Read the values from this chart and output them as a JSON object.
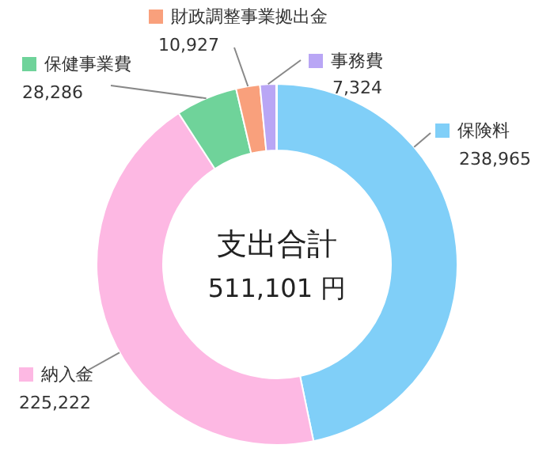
{
  "chart_data": {
    "type": "donut",
    "title": "支出合計",
    "subtitle": "511,101 円",
    "categories": [
      "保険料",
      "納入金",
      "保健事業費",
      "財政調整事業拠出金",
      "事務費",
      null
    ],
    "values": [
      238965,
      225222,
      28286,
      10927,
      7324,
      377
    ],
    "value_labels": [
      "238,965",
      "225,222",
      "28,286",
      "10,927",
      "7,324",
      null
    ],
    "colors": [
      "#80cff8",
      "#fdb8e3",
      "#6fd39a",
      "#f9a07c",
      "#b9a6f5",
      "#c8c8c8"
    ],
    "legend": "top"
  }
}
